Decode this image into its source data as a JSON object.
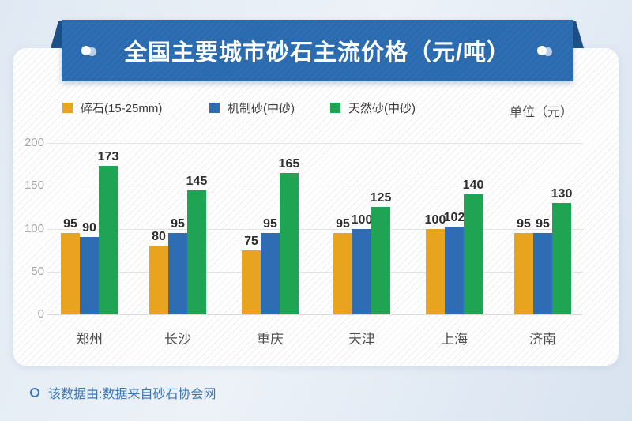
{
  "banner": {
    "title": "全国主要城市砂石主流价格（元/吨）"
  },
  "legend": {
    "items": [
      {
        "label": "碎石(15-25mm)",
        "color": "#e8a41f"
      },
      {
        "label": "机制砂(中砂)",
        "color": "#2e6db4"
      },
      {
        "label": "天然砂(中砂)",
        "color": "#1ea452"
      }
    ],
    "unit_label": "单位（元）"
  },
  "chart_data": {
    "type": "bar",
    "title": "全国主要城市砂石主流价格（元/吨）",
    "categories": [
      "郑州",
      "长沙",
      "重庆",
      "天津",
      "上海",
      "济南"
    ],
    "series": [
      {
        "name": "碎石(15-25mm)",
        "color": "#e8a41f",
        "values": [
          95,
          80,
          75,
          95,
          100,
          95
        ]
      },
      {
        "name": "机制砂(中砂)",
        "color": "#2e6db4",
        "values": [
          90,
          95,
          95,
          100,
          102,
          95
        ]
      },
      {
        "name": "天然砂(中砂)",
        "color": "#1ea452",
        "values": [
          173,
          145,
          165,
          125,
          140,
          130
        ]
      }
    ],
    "ylabel": "",
    "xlabel": "",
    "ylim": [
      0,
      200
    ],
    "yticks": [
      0,
      50,
      100,
      150,
      200
    ],
    "grid": true,
    "legend_position": "top",
    "unit": "单位（元）",
    "value_labels": true
  },
  "footer": {
    "source_note": "该数据由:数据来自砂石协会网"
  },
  "colors": {
    "banner": "#2a6aaf",
    "banner_fold": "#1d5187",
    "footer_text": "#3a76b4",
    "page_bg_start": "#e0e9f3",
    "page_bg_end": "#d8e3f0"
  }
}
